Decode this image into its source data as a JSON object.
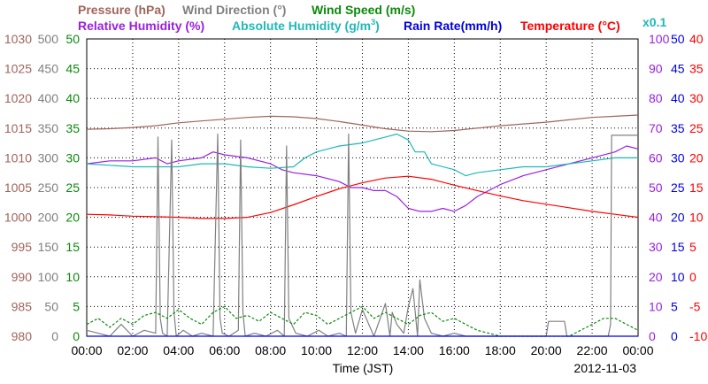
{
  "chart_data": {
    "type": "line",
    "legend": {
      "pressure": "Pressure (hPa)",
      "wind_direction": "Wind Direction (°)",
      "wind_speed": "Wind Speed (m/s)",
      "relative_humidity": "Relative Humidity (%)",
      "absolute_humidity_prefix": "Absolute Humidity (g/m",
      "absolute_humidity_sup": "3",
      "absolute_humidity_suffix": ")",
      "rain_rate": "Rain Rate(mm/h)",
      "temperature": "Temperature (°C)",
      "multiplier": "x0.1"
    },
    "xlabel": "Time (JST)",
    "date": "2012-11-03",
    "x_tick_labels": [
      "00:00",
      "02:00",
      "04:00",
      "06:00",
      "08:00",
      "10:00",
      "12:00",
      "14:00",
      "16:00",
      "18:00",
      "20:00",
      "22:00",
      "00:00"
    ],
    "grid": true,
    "axes": {
      "pressure": {
        "ticks": [
          "1030",
          "1025",
          "1020",
          "1015",
          "1010",
          "1005",
          "1000",
          "995",
          "990",
          "985",
          "980"
        ],
        "ylim": [
          980,
          1030
        ],
        "color": "#a0645c"
      },
      "wind_direction": {
        "ticks": [
          "500",
          "450",
          "400",
          "350",
          "300",
          "250",
          "200",
          "150",
          "100",
          "50",
          "0"
        ],
        "ylim": [
          0,
          500
        ],
        "color": "#808080"
      },
      "wind_speed": {
        "ticks": [
          "50",
          "45",
          "40",
          "35",
          "30",
          "25",
          "20",
          "15",
          "10",
          "5",
          "0"
        ],
        "ylim": [
          0,
          50
        ],
        "color": "#0a8a0a"
      },
      "relative_humidity": {
        "ticks": [
          "100",
          "90",
          "80",
          "70",
          "60",
          "50",
          "40",
          "30",
          "20",
          "10",
          "0"
        ],
        "ylim": [
          0,
          100
        ],
        "color": "#9a20e0"
      },
      "rain_rate": {
        "ticks": [
          "50",
          "45",
          "40",
          "35",
          "30",
          "25",
          "20",
          "15",
          "10",
          "5",
          "0"
        ],
        "ylim": [
          0,
          50
        ],
        "color": "#0000e0"
      },
      "temperature": {
        "ticks": [
          "40",
          "35",
          "30",
          "25",
          "20",
          "15",
          "10",
          "5",
          "0",
          "-5",
          "-10"
        ],
        "ylim": [
          -10,
          40
        ],
        "color": "#ff0000"
      }
    },
    "series": [
      {
        "name": "Pressure (hPa)",
        "axis": "pressure",
        "color": "#a0645c",
        "x": [
          0,
          1,
          2,
          3,
          4,
          5,
          6,
          7,
          8,
          9,
          10,
          11,
          12,
          13,
          14,
          15,
          16,
          17,
          18,
          19,
          20,
          21,
          22,
          23,
          24
        ],
        "values": [
          1014.8,
          1014.9,
          1015.1,
          1015.4,
          1015.9,
          1016.2,
          1016.5,
          1016.8,
          1017.0,
          1016.9,
          1016.6,
          1016.1,
          1015.5,
          1014.9,
          1014.5,
          1014.4,
          1014.6,
          1015.0,
          1015.4,
          1015.7,
          1016.0,
          1016.4,
          1016.8,
          1017.0,
          1017.2
        ]
      },
      {
        "name": "Relative Humidity (%)",
        "axis": "relative_humidity",
        "color": "#9a20e0",
        "x": [
          0,
          1,
          2,
          3,
          3.5,
          4,
          5,
          5.5,
          6,
          7,
          8,
          8.5,
          9,
          10,
          11,
          11.5,
          12,
          12.5,
          13,
          13.5,
          14,
          14.5,
          15,
          15.5,
          16,
          16.5,
          17,
          18,
          19,
          20,
          21,
          22,
          23,
          23.5,
          24
        ],
        "values": [
          58,
          59,
          59,
          60,
          58,
          59,
          60,
          62,
          61,
          60,
          58,
          56,
          55,
          54,
          52,
          50,
          50,
          49,
          49,
          47,
          43,
          42,
          42,
          43,
          42,
          44,
          47,
          51,
          54,
          56,
          58,
          60,
          62,
          64,
          63
        ]
      },
      {
        "name": "Absolute Humidity (g/m3)",
        "axis": "relative_humidity",
        "color": "#20b8b8",
        "x": [
          0,
          1,
          2,
          3,
          4,
          5,
          6,
          7,
          8,
          9,
          9.5,
          10,
          11,
          12,
          13,
          13.5,
          14,
          14.3,
          14.7,
          15,
          16,
          16.5,
          17,
          18,
          19,
          20,
          21,
          22,
          23,
          24
        ],
        "values": [
          58,
          57.5,
          57,
          57,
          57,
          58,
          58,
          57,
          56.5,
          57,
          60,
          62,
          64,
          65,
          67,
          68,
          66,
          62,
          62,
          58,
          56,
          54,
          55,
          56,
          57,
          57,
          58,
          59,
          60,
          60
        ]
      },
      {
        "name": "Temperature (°C)",
        "axis": "temperature",
        "color": "#ff0000",
        "x": [
          0,
          1,
          2,
          3,
          4,
          5,
          6,
          7,
          8,
          9,
          10,
          11,
          12,
          13,
          14,
          15,
          16,
          17,
          18,
          19,
          20,
          21,
          22,
          23,
          24
        ],
        "values": [
          10.5,
          10.4,
          10.2,
          10.1,
          10.0,
          9.8,
          9.8,
          10.0,
          10.8,
          12.1,
          13.5,
          14.8,
          15.8,
          16.6,
          16.9,
          16.4,
          15.4,
          14.5,
          13.6,
          12.8,
          12.2,
          11.6,
          11.0,
          10.5,
          10.0
        ]
      },
      {
        "name": "Wind Direction (°)",
        "axis": "wind_direction",
        "color": "#808080",
        "x": [
          0,
          0.5,
          1,
          1.5,
          2,
          2.5,
          3,
          3.1,
          3.2,
          3.3,
          3.5,
          3.7,
          3.8,
          3.9,
          4.2,
          4.6,
          5,
          5.5,
          5.7,
          5.8,
          5.9,
          6.2,
          6.6,
          6.7,
          6.8,
          6.9,
          7.3,
          7.8,
          8.3,
          8.6,
          8.7,
          8.8,
          9.1,
          9.6,
          10.1,
          10.5,
          11,
          11.3,
          11.4,
          11.5,
          11.7,
          12,
          12.5,
          13,
          13.2,
          13.3,
          13.5,
          13.8,
          14,
          14.2,
          14.4,
          14.5,
          14.7,
          15,
          15.5,
          16,
          16.5,
          17,
          17.5,
          18,
          18.5,
          19,
          19.5,
          20,
          20.1,
          20.2,
          20.8,
          20.9,
          21,
          22,
          22.7,
          22.8,
          22.85,
          23.2,
          23.5,
          24
        ],
        "values": [
          10,
          5,
          0,
          20,
          0,
          10,
          5,
          335,
          30,
          5,
          0,
          330,
          40,
          0,
          10,
          0,
          5,
          0,
          340,
          30,
          5,
          0,
          10,
          330,
          40,
          0,
          5,
          0,
          10,
          0,
          320,
          30,
          5,
          0,
          10,
          0,
          5,
          0,
          340,
          40,
          5,
          45,
          0,
          55,
          0,
          40,
          20,
          5,
          50,
          80,
          0,
          95,
          30,
          5,
          0,
          5,
          0,
          0,
          0,
          0,
          0,
          0,
          0,
          0,
          25,
          25,
          25,
          0,
          0,
          0,
          0,
          20,
          338,
          338,
          338,
          338
        ]
      },
      {
        "name": "Wind Speed (m/s)",
        "axis": "wind_speed",
        "color": "#0a8a0a",
        "x": [
          0,
          0.5,
          1,
          1.5,
          2,
          2.5,
          3,
          3.5,
          4,
          4.5,
          5,
          5.5,
          6,
          6.5,
          7,
          7.5,
          8,
          8.5,
          9,
          9.5,
          10,
          10.5,
          11,
          11.5,
          12,
          12.5,
          13,
          13.5,
          14,
          14.5,
          15,
          15.5,
          16,
          16.5,
          17,
          17.5,
          18,
          18.5,
          19,
          19.5,
          20,
          20.5,
          21,
          21.5,
          22,
          22.5,
          23,
          23.5,
          24
        ],
        "values": [
          2,
          3,
          1.5,
          3,
          2,
          3.5,
          4,
          3,
          4.5,
          3,
          2,
          4,
          5,
          3,
          3.5,
          2.5,
          4,
          3,
          2,
          4,
          3.5,
          2,
          3,
          4,
          5,
          3,
          4,
          3,
          2,
          3.5,
          4,
          2.5,
          3,
          2,
          1,
          0.5,
          0,
          0,
          0,
          0,
          0,
          0,
          0,
          1,
          2,
          3,
          3,
          2,
          1
        ]
      },
      {
        "name": "Rain Rate(mm/h)",
        "axis": "rain_rate",
        "color": "#0000e0",
        "x": [
          0,
          24
        ],
        "values": [
          0,
          0
        ]
      }
    ]
  }
}
